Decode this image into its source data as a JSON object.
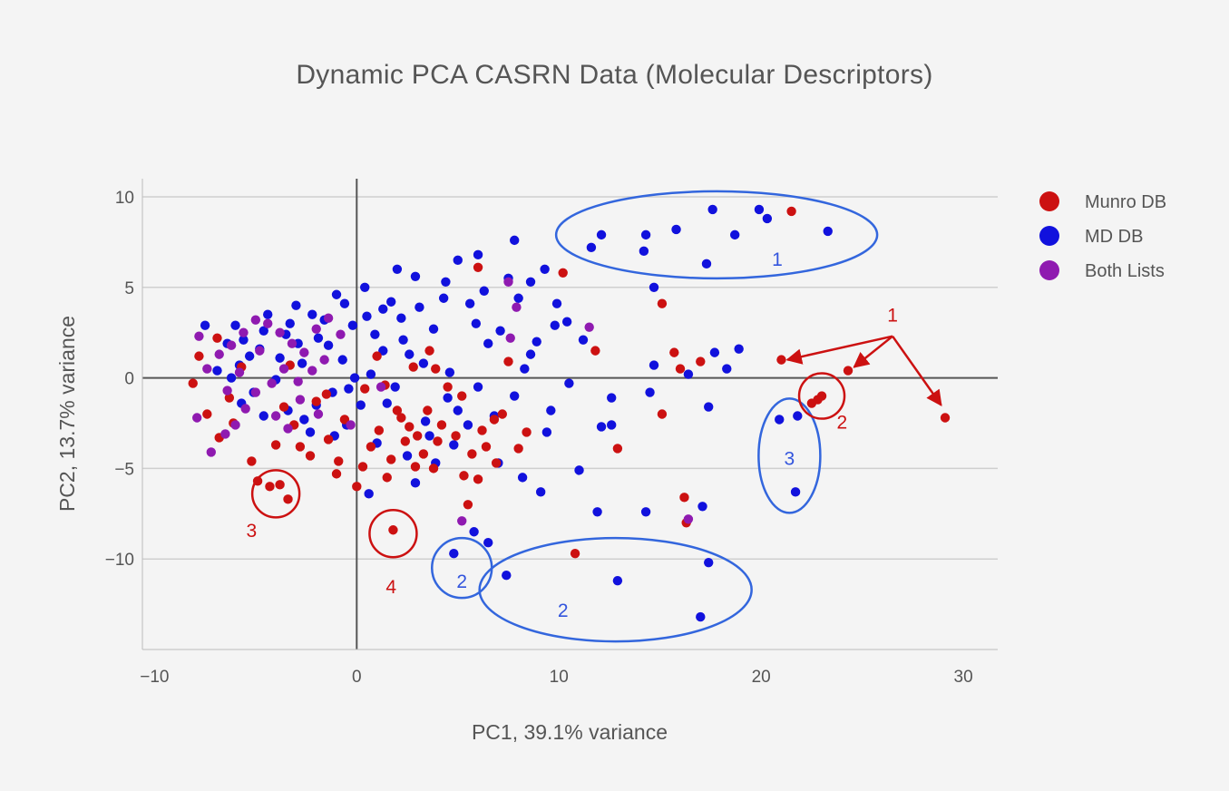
{
  "chart_data": {
    "type": "scatter",
    "title": "Dynamic PCA CASRN Data (Molecular Descriptors)",
    "xlabel": "PC1, 39.1% variance",
    "ylabel": "PC2, 13.7% variance",
    "xlim": [
      -10.6,
      31.7
    ],
    "ylim": [
      -15,
      11
    ],
    "xticks": [
      -10,
      0,
      10,
      20,
      30
    ],
    "xtick_labels": [
      "−10",
      "0",
      "10",
      "20",
      "30"
    ],
    "yticks": [
      -10,
      -5,
      0,
      5,
      10
    ],
    "ytick_labels": [
      "−10",
      "−5",
      "0",
      "5",
      "10"
    ],
    "grid": "horizontal",
    "zero_lines": true,
    "legend_position": "top-right",
    "series": [
      {
        "name": "Munro DB",
        "color": "#cc1111",
        "points": [
          [
            21.5,
            9.2
          ],
          [
            21.0,
            1.0
          ],
          [
            24.3,
            0.4
          ],
          [
            29.1,
            -2.2
          ],
          [
            22.5,
            -1.4
          ],
          [
            23.0,
            -1.0
          ],
          [
            22.8,
            -1.2
          ],
          [
            10.2,
            5.8
          ],
          [
            15.1,
            4.1
          ],
          [
            11.8,
            1.5
          ],
          [
            15.7,
            1.4
          ],
          [
            17.0,
            0.9
          ],
          [
            16.0,
            0.5
          ],
          [
            15.1,
            -2.0
          ],
          [
            12.9,
            -3.9
          ],
          [
            16.2,
            -6.6
          ],
          [
            16.3,
            -8.0
          ],
          [
            10.8,
            -9.7
          ],
          [
            8.4,
            -3.0
          ],
          [
            6.0,
            6.1
          ],
          [
            7.5,
            0.9
          ],
          [
            -4.3,
            -6.0
          ],
          [
            -3.8,
            -5.9
          ],
          [
            -3.4,
            -6.7
          ],
          [
            1.8,
            -8.4
          ],
          [
            7.2,
            -2.0
          ],
          [
            6.9,
            -4.7
          ],
          [
            6.0,
            -5.6
          ],
          [
            5.5,
            -7.0
          ],
          [
            3.0,
            -3.2
          ],
          [
            2.6,
            -2.7
          ],
          [
            3.3,
            -4.2
          ],
          [
            -8.1,
            -0.3
          ],
          [
            -7.8,
            1.2
          ],
          [
            -6.8,
            -3.3
          ],
          [
            -5.2,
            -4.6
          ],
          [
            -4.9,
            -5.7
          ],
          [
            1.5,
            -5.5
          ],
          [
            0.0,
            -6.0
          ],
          [
            -1.0,
            -5.3
          ],
          [
            -2.3,
            -4.3
          ],
          [
            2.0,
            -1.8
          ],
          [
            2.4,
            -3.5
          ],
          [
            4.0,
            -3.5
          ],
          [
            4.9,
            -3.2
          ],
          [
            5.7,
            -4.2
          ],
          [
            6.4,
            -3.8
          ],
          [
            6.8,
            -2.3
          ],
          [
            4.5,
            -0.5
          ],
          [
            5.2,
            -1.0
          ],
          [
            3.6,
            1.5
          ],
          [
            3.9,
            0.5
          ],
          [
            1.0,
            1.2
          ],
          [
            0.4,
            -0.6
          ],
          [
            -0.6,
            -2.3
          ],
          [
            -1.4,
            -3.4
          ],
          [
            -2.0,
            -1.3
          ],
          [
            -3.1,
            -2.6
          ],
          [
            -4.0,
            -3.7
          ],
          [
            -6.3,
            -1.1
          ],
          [
            -7.4,
            -2.0
          ],
          [
            -5.7,
            0.6
          ],
          [
            -6.9,
            2.2
          ],
          [
            1.7,
            -4.5
          ],
          [
            2.9,
            -4.9
          ],
          [
            3.8,
            -5.0
          ],
          [
            5.3,
            -5.4
          ],
          [
            6.2,
            -2.9
          ],
          [
            3.5,
            -1.8
          ],
          [
            1.1,
            -2.9
          ],
          [
            -0.9,
            -4.6
          ],
          [
            -2.8,
            -3.8
          ],
          [
            8.0,
            -3.9
          ],
          [
            2.2,
            -2.2
          ],
          [
            4.2,
            -2.6
          ],
          [
            -1.5,
            -0.9
          ],
          [
            -3.6,
            -1.6
          ],
          [
            -6.1,
            -2.5
          ],
          [
            0.7,
            -3.8
          ],
          [
            1.4,
            -0.4
          ],
          [
            2.8,
            0.6
          ],
          [
            0.3,
            -4.9
          ],
          [
            -3.3,
            0.7
          ]
        ]
      },
      {
        "name": "MD DB",
        "color": "#1111dd",
        "points": [
          [
            19.9,
            9.3
          ],
          [
            17.6,
            9.3
          ],
          [
            20.3,
            8.8
          ],
          [
            23.3,
            8.1
          ],
          [
            18.7,
            7.9
          ],
          [
            15.8,
            8.2
          ],
          [
            14.3,
            7.9
          ],
          [
            12.1,
            7.9
          ],
          [
            11.6,
            7.2
          ],
          [
            14.2,
            7.0
          ],
          [
            17.3,
            6.3
          ],
          [
            14.7,
            5.0
          ],
          [
            18.9,
            1.6
          ],
          [
            17.7,
            1.4
          ],
          [
            18.3,
            0.5
          ],
          [
            21.8,
            -2.1
          ],
          [
            20.9,
            -2.3
          ],
          [
            21.7,
            -6.3
          ],
          [
            17.4,
            -1.6
          ],
          [
            16.4,
            0.2
          ],
          [
            14.7,
            0.7
          ],
          [
            12.6,
            -1.1
          ],
          [
            12.6,
            -2.6
          ],
          [
            14.5,
            -0.8
          ],
          [
            12.1,
            -2.7
          ],
          [
            11.0,
            -5.1
          ],
          [
            14.3,
            -7.4
          ],
          [
            17.1,
            -7.1
          ],
          [
            11.9,
            -7.4
          ],
          [
            17.4,
            -10.2
          ],
          [
            12.9,
            -11.2
          ],
          [
            7.4,
            -10.9
          ],
          [
            17.0,
            -13.2
          ],
          [
            4.8,
            -9.7
          ],
          [
            6.5,
            -9.1
          ],
          [
            9.1,
            -6.3
          ],
          [
            5.8,
            -8.5
          ],
          [
            2.9,
            -5.8
          ],
          [
            0.6,
            -6.4
          ],
          [
            7.5,
            5.5
          ],
          [
            6.0,
            6.8
          ],
          [
            5.0,
            6.5
          ],
          [
            7.8,
            7.6
          ],
          [
            8.6,
            5.3
          ],
          [
            9.3,
            6.0
          ],
          [
            9.8,
            2.9
          ],
          [
            10.4,
            3.1
          ],
          [
            11.2,
            2.1
          ],
          [
            10.5,
            -0.3
          ],
          [
            9.4,
            -3.0
          ],
          [
            8.2,
            -5.5
          ],
          [
            7.0,
            -4.7
          ],
          [
            5.5,
            -2.6
          ],
          [
            4.5,
            -1.1
          ],
          [
            3.3,
            0.8
          ],
          [
            2.3,
            2.1
          ],
          [
            1.3,
            3.8
          ],
          [
            0.4,
            5.0
          ],
          [
            -1.0,
            4.6
          ],
          [
            -2.2,
            3.5
          ],
          [
            -3.5,
            2.4
          ],
          [
            -4.8,
            1.6
          ],
          [
            -5.8,
            0.7
          ],
          [
            -6.9,
            0.4
          ],
          [
            -7.5,
            2.9
          ],
          [
            -6.0,
            2.9
          ],
          [
            -4.4,
            3.5
          ],
          [
            -3.0,
            4.0
          ],
          [
            -1.9,
            2.2
          ],
          [
            -0.7,
            1.0
          ],
          [
            0.7,
            0.2
          ],
          [
            1.9,
            -0.5
          ],
          [
            3.4,
            -2.4
          ],
          [
            4.8,
            -3.7
          ],
          [
            6.8,
            -2.1
          ],
          [
            8.6,
            1.3
          ],
          [
            9.6,
            -1.8
          ],
          [
            6.5,
            1.9
          ],
          [
            4.3,
            4.4
          ],
          [
            2.9,
            5.6
          ],
          [
            1.7,
            4.2
          ],
          [
            -0.2,
            2.9
          ],
          [
            -1.4,
            1.8
          ],
          [
            -2.7,
            0.8
          ],
          [
            -4.0,
            -0.1
          ],
          [
            -5.3,
            1.2
          ],
          [
            -6.4,
            1.9
          ],
          [
            -2.0,
            -1.5
          ],
          [
            -0.5,
            -2.6
          ],
          [
            1.0,
            -3.6
          ],
          [
            2.5,
            -4.3
          ],
          [
            3.9,
            -4.7
          ],
          [
            4.4,
            5.3
          ],
          [
            3.1,
            3.9
          ],
          [
            2.0,
            6.0
          ],
          [
            0.9,
            2.4
          ],
          [
            -0.1,
            0.0
          ],
          [
            -1.2,
            -0.8
          ],
          [
            -2.6,
            -2.3
          ],
          [
            -3.8,
            1.1
          ],
          [
            -5.1,
            -0.8
          ],
          [
            -6.2,
            0.0
          ],
          [
            5.6,
            4.1
          ],
          [
            6.3,
            4.8
          ],
          [
            7.1,
            2.6
          ],
          [
            8.0,
            4.4
          ],
          [
            8.9,
            2.0
          ],
          [
            9.9,
            4.1
          ],
          [
            3.8,
            2.7
          ],
          [
            2.6,
            1.3
          ],
          [
            1.5,
            -1.4
          ],
          [
            -0.6,
            4.1
          ],
          [
            -1.6,
            3.2
          ],
          [
            -3.3,
            3.0
          ],
          [
            -4.6,
            2.6
          ],
          [
            -5.6,
            2.1
          ],
          [
            2.2,
            3.3
          ],
          [
            3.6,
            -3.2
          ],
          [
            5.0,
            -1.8
          ],
          [
            6.0,
            -0.5
          ],
          [
            7.8,
            -1.0
          ],
          [
            8.3,
            0.5
          ],
          [
            0.2,
            -1.5
          ],
          [
            -1.1,
            -3.2
          ],
          [
            -2.3,
            -3.0
          ],
          [
            -3.4,
            -1.8
          ],
          [
            -4.6,
            -2.1
          ],
          [
            -5.7,
            -1.4
          ],
          [
            1.3,
            1.5
          ],
          [
            4.6,
            0.3
          ],
          [
            5.9,
            3.0
          ],
          [
            0.5,
            3.4
          ],
          [
            -2.9,
            1.9
          ],
          [
            -0.4,
            -0.6
          ]
        ]
      },
      {
        "name": "Both Lists",
        "color": "#8f1ab0",
        "points": [
          [
            7.9,
            3.9
          ],
          [
            11.5,
            2.8
          ],
          [
            16.4,
            -7.8
          ],
          [
            7.6,
            2.2
          ],
          [
            7.5,
            5.3
          ],
          [
            5.2,
            -7.9
          ],
          [
            -7.8,
            2.3
          ],
          [
            -7.9,
            -2.2
          ],
          [
            -7.2,
            -4.1
          ],
          [
            -6.5,
            -3.1
          ],
          [
            -6.0,
            -2.6
          ],
          [
            -5.5,
            -1.7
          ],
          [
            -7.4,
            0.5
          ],
          [
            -6.8,
            1.3
          ],
          [
            -6.2,
            1.8
          ],
          [
            -5.6,
            2.5
          ],
          [
            -5.0,
            3.2
          ],
          [
            -4.4,
            3.0
          ],
          [
            -3.8,
            2.5
          ],
          [
            -3.2,
            1.9
          ],
          [
            -2.6,
            1.4
          ],
          [
            -2.0,
            2.7
          ],
          [
            -1.4,
            3.3
          ],
          [
            -0.8,
            2.4
          ],
          [
            -4.0,
            -2.1
          ],
          [
            -3.4,
            -2.8
          ],
          [
            -2.8,
            -1.2
          ],
          [
            -5.8,
            0.3
          ],
          [
            -5.0,
            -0.8
          ],
          [
            -4.2,
            -0.3
          ],
          [
            -3.6,
            0.5
          ],
          [
            -2.9,
            -0.2
          ],
          [
            -2.2,
            0.4
          ],
          [
            -1.6,
            1.0
          ],
          [
            -4.8,
            1.5
          ],
          [
            -6.4,
            -0.7
          ],
          [
            -0.3,
            -2.6
          ],
          [
            1.2,
            -0.5
          ],
          [
            -1.9,
            -2.0
          ]
        ]
      }
    ],
    "annotations": [
      {
        "text": "1",
        "color": "#3355dd",
        "target": "ellipse upper-right blue cluster"
      },
      {
        "text": "2",
        "color": "#3355dd",
        "target": "small blue circle near (5.2,-10.4)"
      },
      {
        "text": "2",
        "color": "#3355dd",
        "target": "blue ellipse bottom"
      },
      {
        "text": "3",
        "color": "#3355dd",
        "target": "blue ellipse right"
      },
      {
        "text": "1",
        "color": "#cc1111",
        "target": "red arrows to outliers"
      },
      {
        "text": "2",
        "color": "#cc1111",
        "target": "red circle near (23,-1)"
      },
      {
        "text": "3",
        "color": "#cc1111",
        "target": "red circle near (-4,-6.2)"
      },
      {
        "text": "4",
        "color": "#cc1111",
        "target": "red circle near (1.8,-8.5)"
      }
    ]
  }
}
